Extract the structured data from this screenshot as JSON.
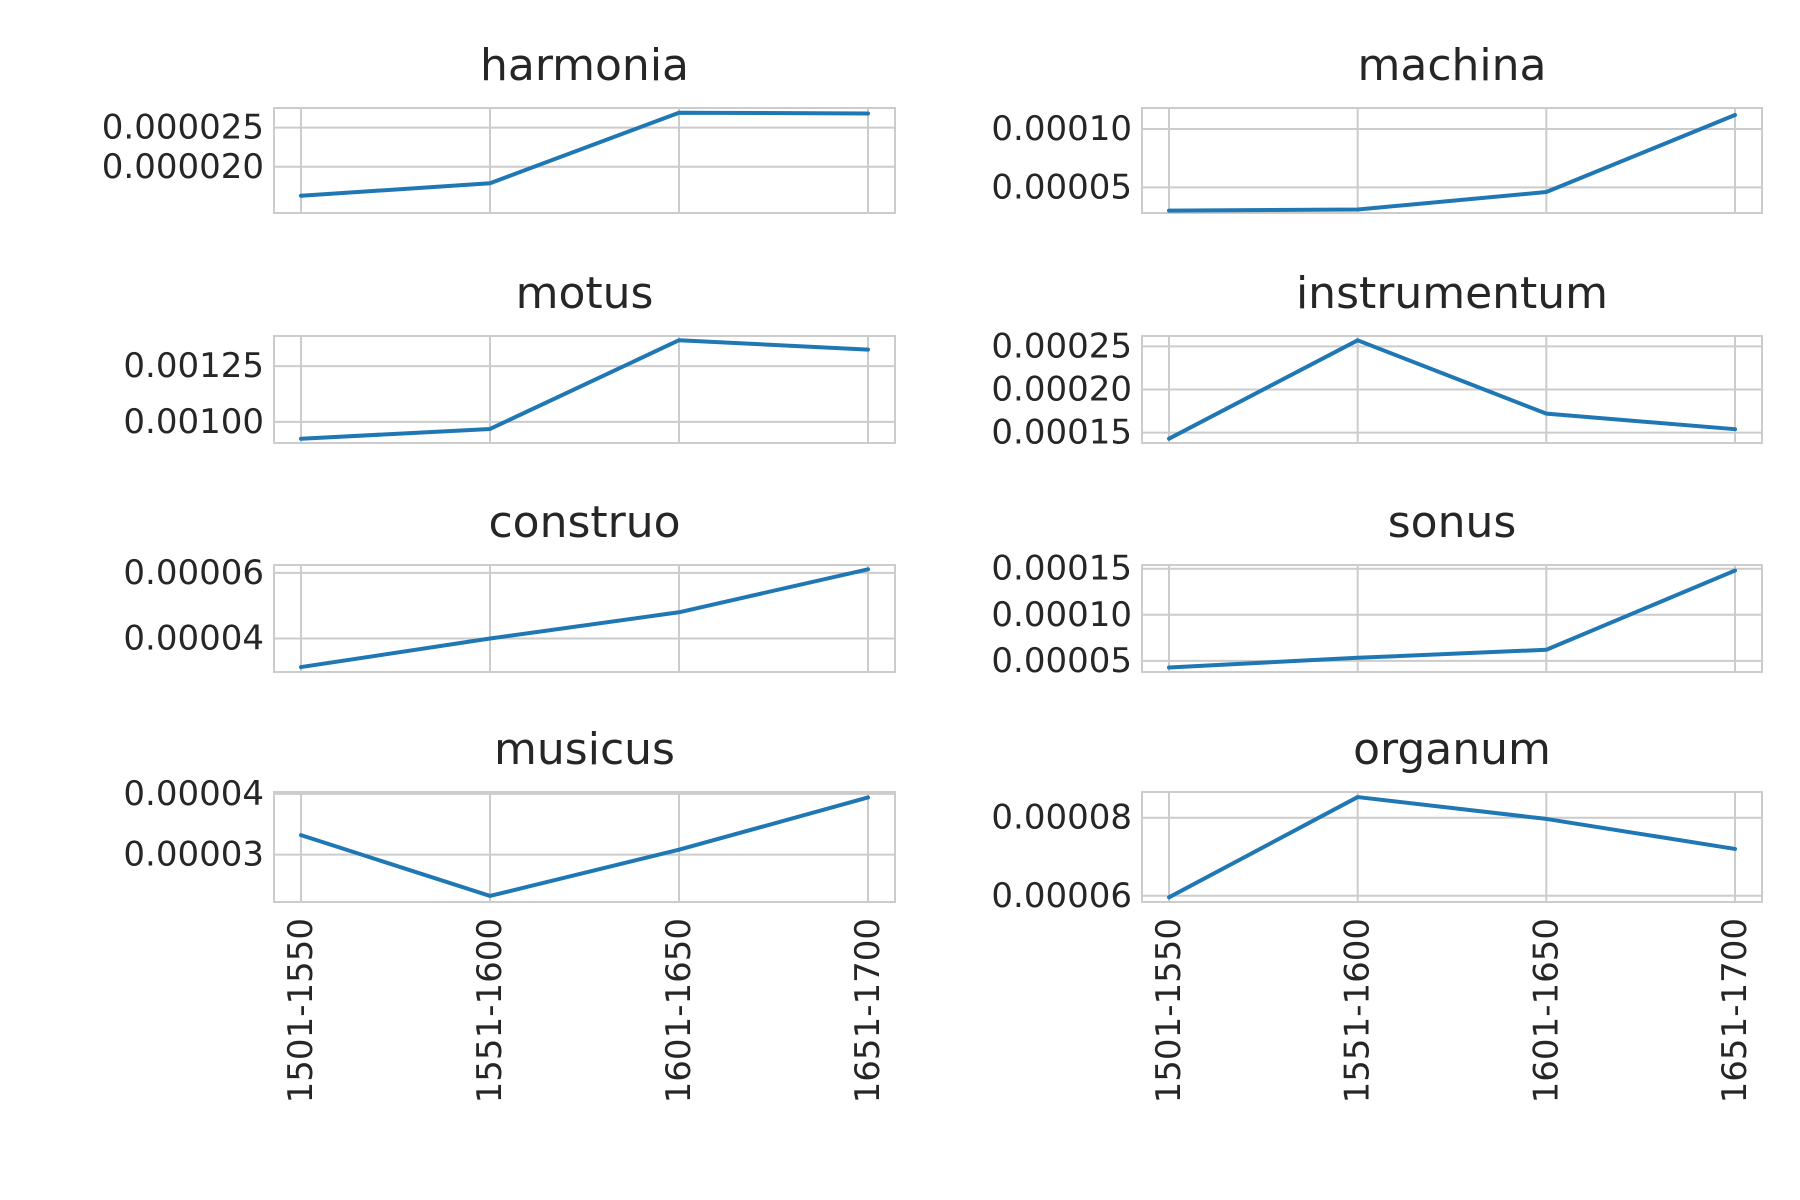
{
  "chart_data": [
    {
      "type": "line",
      "title": "harmonia",
      "categories": [
        "1501-1550",
        "1551-1600",
        "1601-1650",
        "1651-1700"
      ],
      "values": [
        1.63e-05,
        1.79e-05,
        2.69e-05,
        2.68e-05
      ],
      "ylim": [
        1.41e-05,
        2.75e-05
      ],
      "yticks": [
        2e-05,
        2.5e-05
      ],
      "ytick_labels": [
        "0.000020",
        "0.000025"
      ],
      "grid": true
    },
    {
      "type": "line",
      "title": "machina",
      "categories": [
        "1501-1550",
        "1551-1600",
        "1601-1650",
        "1651-1700"
      ],
      "values": [
        3e-05,
        3.1e-05,
        4.6e-05,
        0.000112
      ],
      "ylim": [
        2.8e-05,
        0.000118
      ],
      "yticks": [
        5e-05,
        0.0001
      ],
      "ytick_labels": [
        "0.00005",
        "0.00010"
      ],
      "grid": true
    },
    {
      "type": "line",
      "title": "motus",
      "categories": [
        "1501-1550",
        "1551-1600",
        "1601-1650",
        "1651-1700"
      ],
      "values": [
        0.000924,
        0.000968,
        0.001366,
        0.001324
      ],
      "ylim": [
        0.000905,
        0.001385
      ],
      "yticks": [
        0.001,
        0.00125
      ],
      "ytick_labels": [
        "0.00100",
        "0.00125"
      ],
      "grid": true
    },
    {
      "type": "line",
      "title": "instrumentum",
      "categories": [
        "1501-1550",
        "1551-1600",
        "1601-1650",
        "1651-1700"
      ],
      "values": [
        0.000143,
        0.000257,
        0.000172,
        0.000154
      ],
      "ylim": [
        0.000138,
        0.000262
      ],
      "yticks": [
        0.00015,
        0.0002,
        0.00025
      ],
      "ytick_labels": [
        "0.00015",
        "0.00020",
        "0.00025"
      ],
      "grid": true
    },
    {
      "type": "line",
      "title": "construo",
      "categories": [
        "1501-1550",
        "1551-1600",
        "1601-1650",
        "1651-1700"
      ],
      "values": [
        3.13e-05,
        4e-05,
        4.8e-05,
        6.11e-05
      ],
      "ylim": [
        2.98e-05,
        6.24e-05
      ],
      "yticks": [
        4e-05,
        6e-05
      ],
      "ytick_labels": [
        "0.00004",
        "0.00006"
      ],
      "grid": true
    },
    {
      "type": "line",
      "title": "sonus",
      "categories": [
        "1501-1550",
        "1551-1600",
        "1601-1650",
        "1651-1700"
      ],
      "values": [
        4.29e-05,
        5.34e-05,
        6.21e-05,
        0.000148
      ],
      "ylim": [
        3.8e-05,
        0.000154
      ],
      "yticks": [
        5e-05,
        0.0001,
        0.00015
      ],
      "ytick_labels": [
        "0.00005",
        "0.00010",
        "0.00015"
      ],
      "grid": true
    },
    {
      "type": "line",
      "title": "musicus",
      "categories": [
        "1501-1550",
        "1551-1600",
        "1601-1650",
        "1651-1700"
      ],
      "values": [
        3.32e-05,
        2.32e-05,
        3.08e-05,
        3.94e-05
      ],
      "ylim": [
        2.22e-05,
        4.03e-05
      ],
      "yticks": [
        3e-05,
        4e-05
      ],
      "ytick_labels": [
        "0.00003",
        "0.00004"
      ],
      "grid": true
    },
    {
      "type": "line",
      "title": "organum",
      "categories": [
        "1501-1550",
        "1551-1600",
        "1601-1650",
        "1651-1700"
      ],
      "values": [
        5.96e-05,
        8.53e-05,
        7.97e-05,
        7.2e-05
      ],
      "ylim": [
        5.84e-05,
        8.66e-05
      ],
      "yticks": [
        6e-05,
        8e-05
      ],
      "ytick_labels": [
        "0.00006",
        "0.00008"
      ],
      "grid": true
    }
  ]
}
